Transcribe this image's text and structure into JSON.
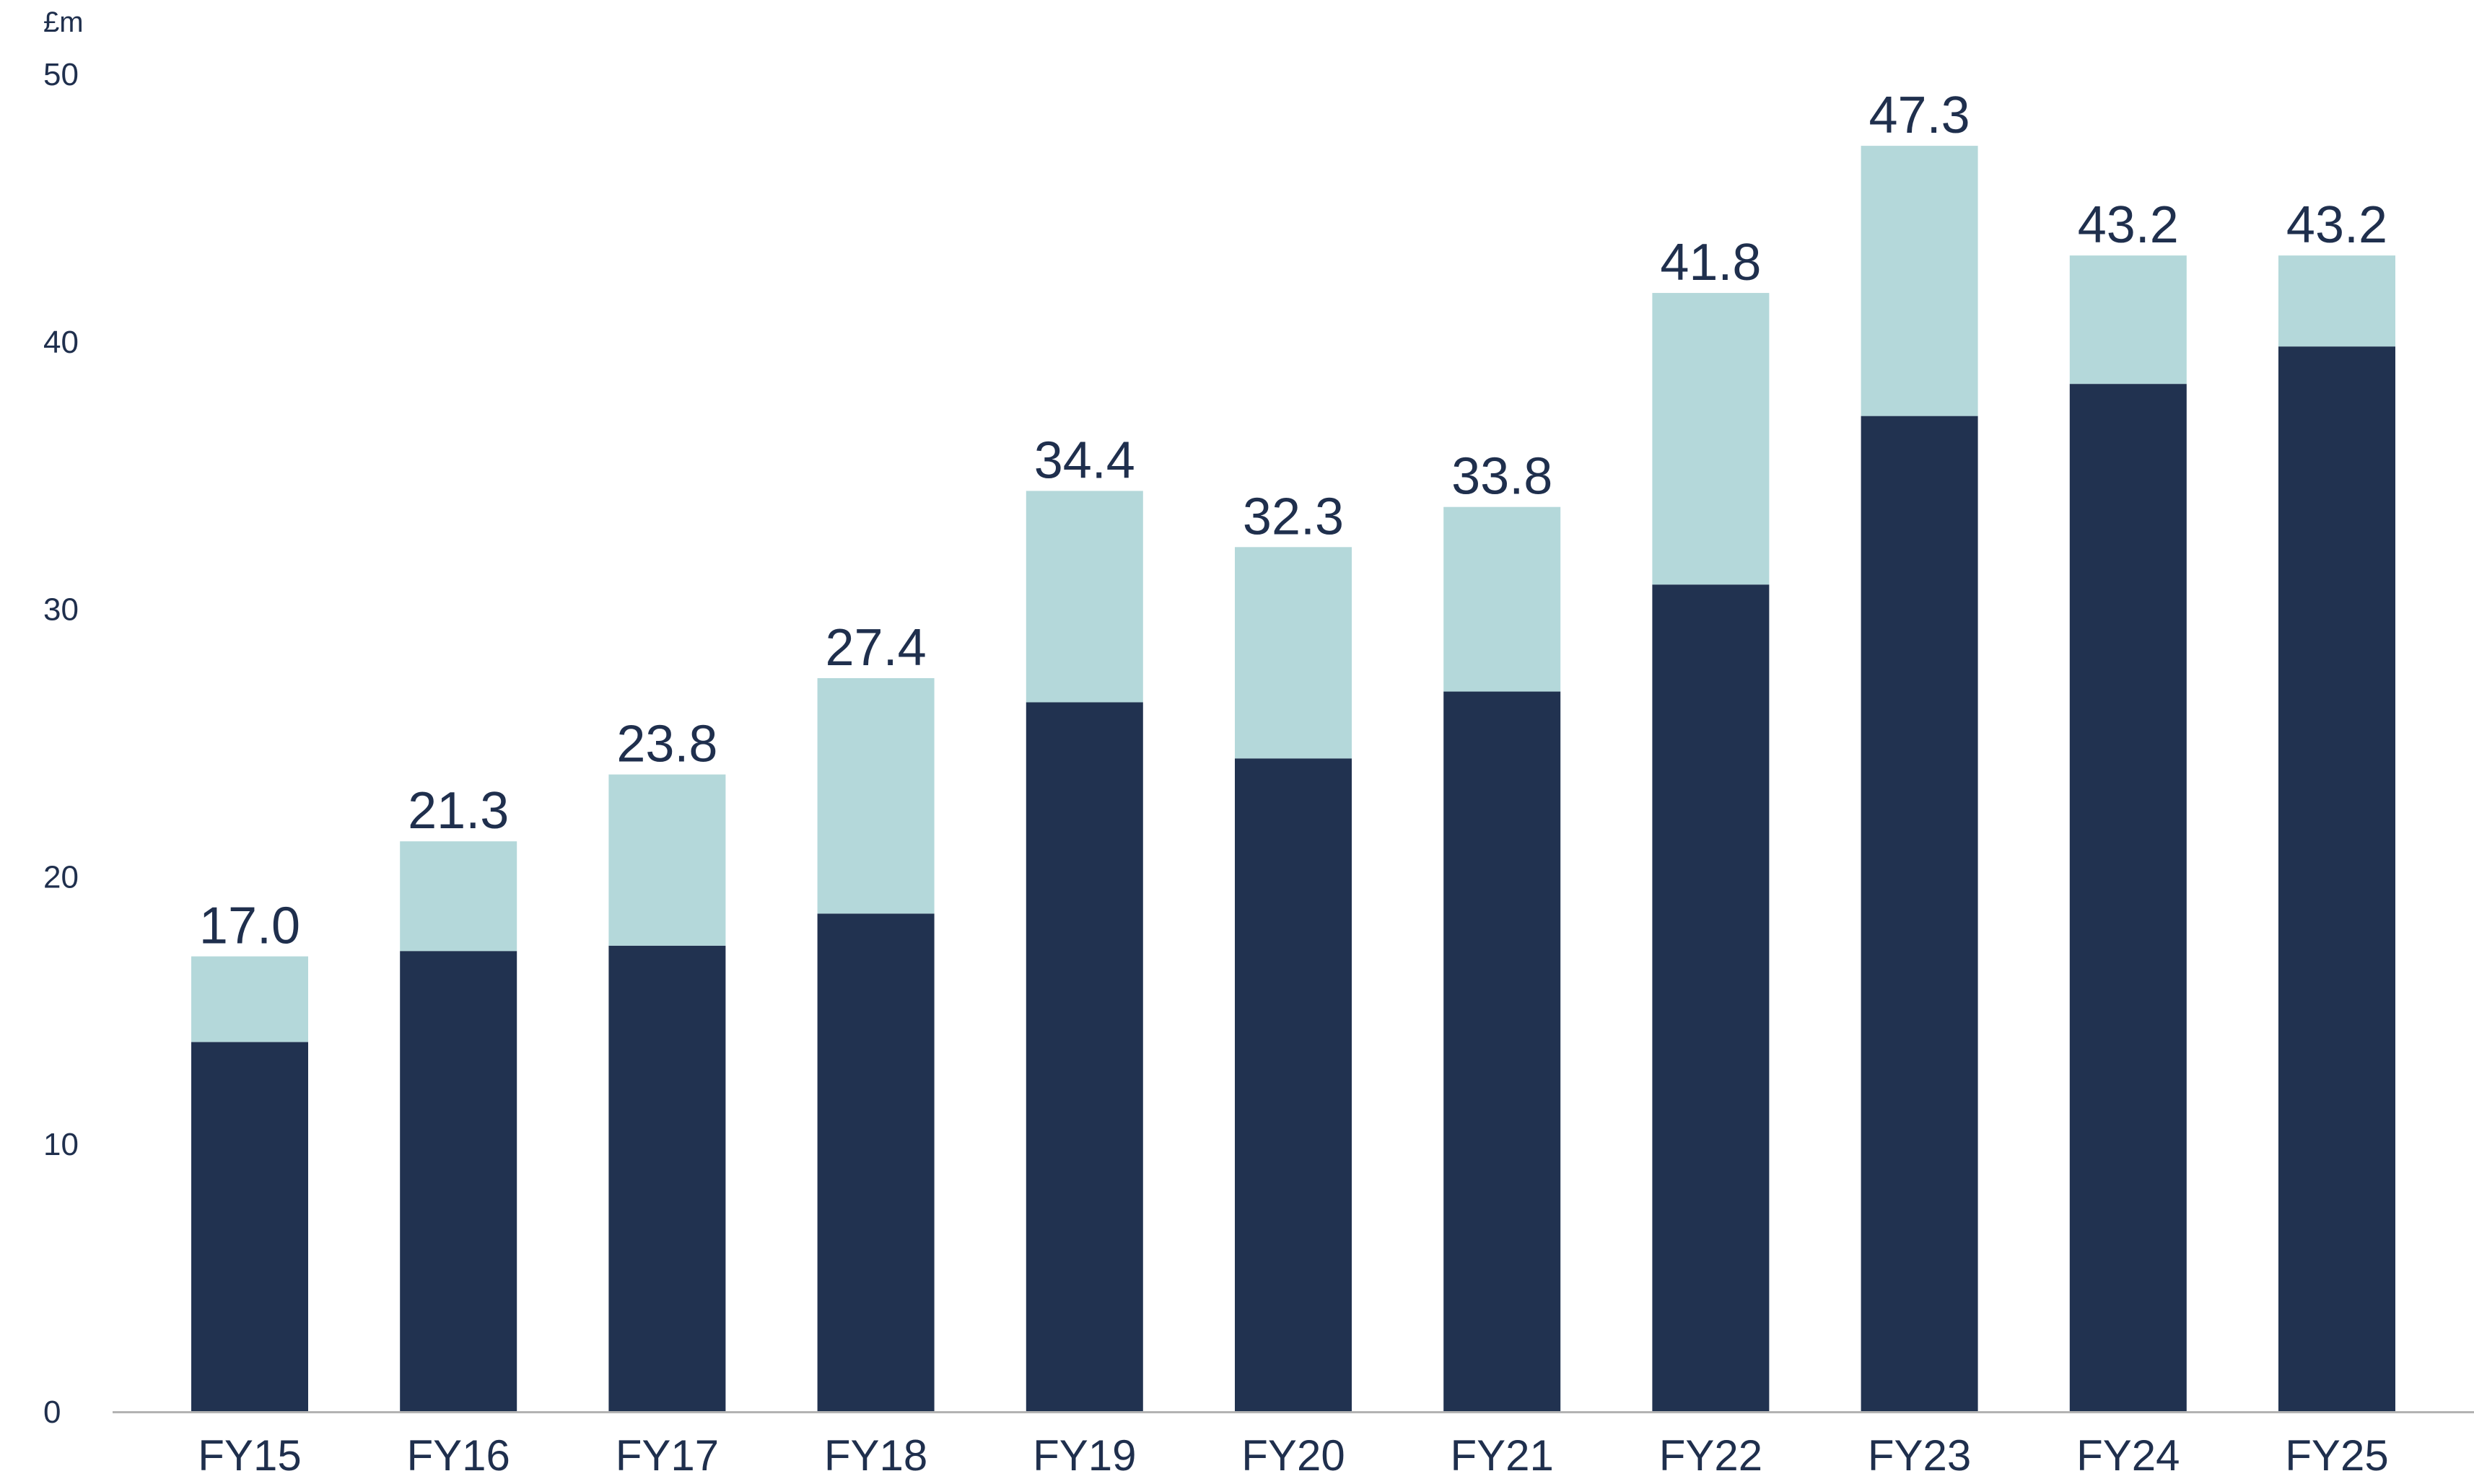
{
  "chart_data": {
    "type": "bar",
    "stacked": true,
    "y_unit": "£m",
    "ylim": [
      0,
      50
    ],
    "yticks": [
      0,
      10,
      20,
      30,
      40,
      50
    ],
    "grid": false,
    "legend": "none",
    "categories": [
      "FY15",
      "FY16",
      "FY17",
      "FY18",
      "FY19",
      "FY20",
      "FY21",
      "FY22",
      "FY23",
      "FY24",
      "FY25"
    ],
    "totals": [
      17.0,
      21.3,
      23.8,
      27.4,
      34.4,
      32.3,
      33.8,
      41.8,
      47.3,
      43.2,
      43.2
    ],
    "total_labels": [
      "17.0",
      "21.3",
      "23.8",
      "27.4",
      "34.4",
      "32.3",
      "33.8",
      "41.8",
      "47.3",
      "43.2",
      "43.2"
    ],
    "series": [
      {
        "color": "#213250",
        "values": [
          13.8,
          17.2,
          17.4,
          18.6,
          26.5,
          24.4,
          26.9,
          30.9,
          37.2,
          38.4,
          39.8
        ]
      },
      {
        "color": "#b4d8da",
        "values": [
          3.2,
          4.1,
          6.4,
          8.8,
          7.9,
          7.9,
          6.9,
          10.9,
          10.1,
          4.8,
          3.4
        ]
      }
    ],
    "colors": {
      "text": "#1f2f4d",
      "axis": "#b3b3b3"
    }
  }
}
